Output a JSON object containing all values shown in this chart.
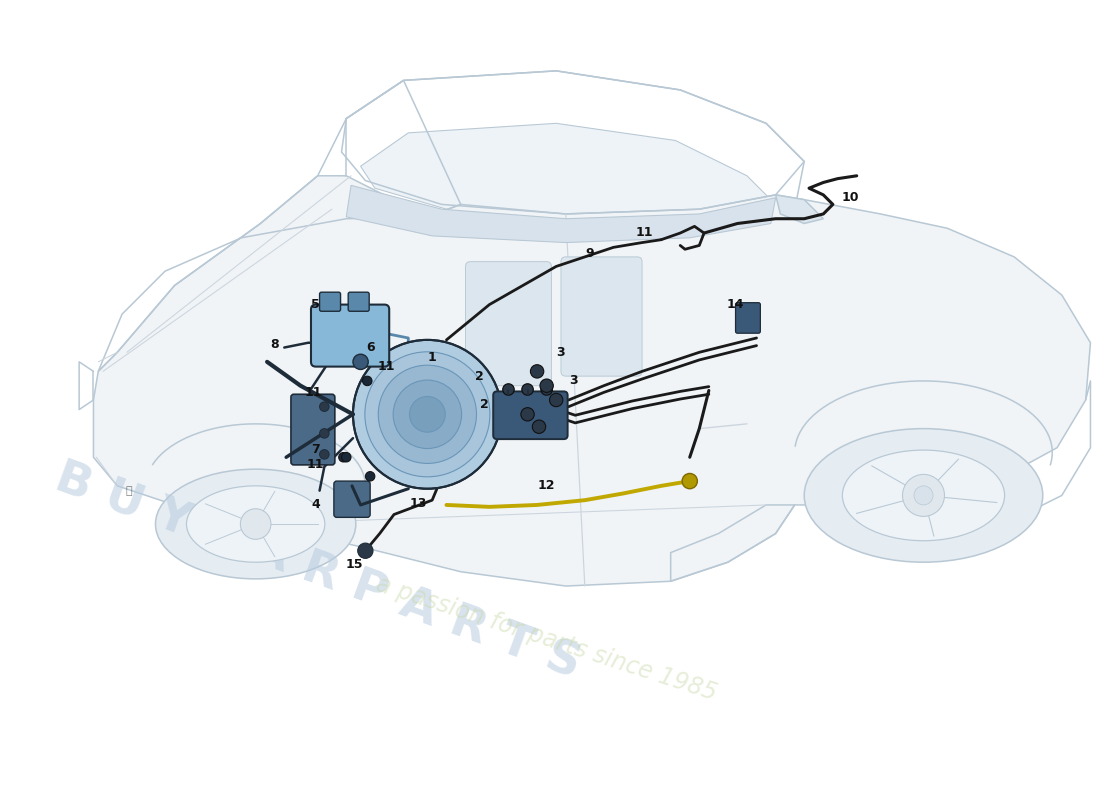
{
  "bg": "#ffffff",
  "car_lc": "#b8c8d4",
  "car_lw": 1.1,
  "dk": "#1e2c3a",
  "boost_fill": "#b0cce0",
  "boost_fill2": "#90b8d5",
  "res_fill": "#88b8d8",
  "mc_fill": "#3a5878",
  "pipe_k": "#1a1a1a",
  "pipe_y": "#c0a800",
  "lbl_fs": 9,
  "wm1_color": "#b8cce0",
  "wm2_color": "#c8d8a8",
  "wm1_alpha": 0.55,
  "wm2_alpha": 0.45
}
